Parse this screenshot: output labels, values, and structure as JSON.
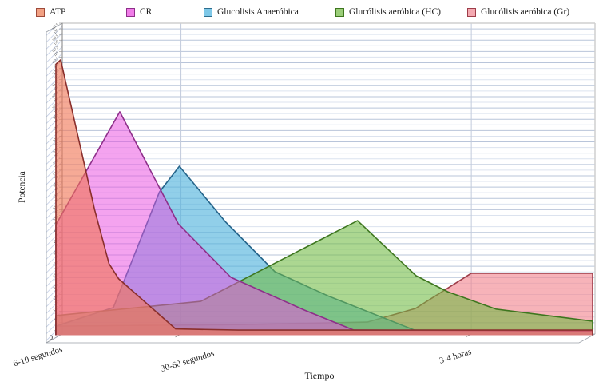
{
  "legend": {
    "items": [
      {
        "label": "ATP",
        "color": "#F2A183",
        "border": "#9E4A3A"
      },
      {
        "label": "CR",
        "color": "#F07CE8",
        "border": "#8E2F8A"
      },
      {
        "label": "Glucolisis Anaeróbica",
        "color": "#7EC8E8",
        "border": "#2E6E8E"
      },
      {
        "label": "Glucólisis aeróbica (HC)",
        "color": "#9ACD78",
        "border": "#3E761F"
      },
      {
        "label": "Glucólisis aeróbica (Gr)",
        "color": "#F4A9B1",
        "border": "#9E3D49"
      }
    ]
  },
  "axes": {
    "x_label": "Tiempo",
    "y_label": "Potencia",
    "y_origin_label": "0",
    "y_ticks": {
      "count": 55,
      "step": 2.5,
      "legible": false
    }
  },
  "chart_data": {
    "type": "area",
    "title": "",
    "xlabel": "Tiempo",
    "ylabel": "Potencia",
    "x_range": [
      0,
      100
    ],
    "ylim": [
      0,
      100
    ],
    "grid": "dense horizontal gridlines, vertical line at each time category",
    "legend_position": "top",
    "categories": [
      {
        "label": "6-10 segundos",
        "t": 0
      },
      {
        "label": "30-60 segundos",
        "t": 23.3
      },
      {
        "label": "3-4 horas",
        "t": 77.4
      }
    ],
    "series": [
      {
        "name": "Glucólisis aeróbica (Gr)",
        "fill": "rgba(242,128,138,0.60)",
        "stroke": "#9E3D49",
        "points": [
          [
            0,
            2.3
          ],
          [
            34,
            2.8
          ],
          [
            58,
            3.6
          ],
          [
            67,
            8
          ],
          [
            77.4,
            19.4
          ],
          [
            100,
            19.4
          ]
        ]
      },
      {
        "name": "Glucolisis Anaeróbica",
        "fill": "rgba(78,178,220,0.62)",
        "stroke": "#25648A",
        "points": [
          [
            0,
            2.3
          ],
          [
            10.7,
            8.3
          ],
          [
            19.3,
            45.7
          ],
          [
            23,
            54
          ],
          [
            31.5,
            36.2
          ],
          [
            40.8,
            19.9
          ],
          [
            50.7,
            12.1
          ],
          [
            66.8,
            1
          ],
          [
            100,
            0.6
          ]
        ]
      },
      {
        "name": "Glucólisis aeróbica (HC)",
        "fill": "rgba(112,186,66,0.58)",
        "stroke": "#3E761F",
        "points": [
          [
            0,
            5.7
          ],
          [
            27,
            10.3
          ],
          [
            56.2,
            36.4
          ],
          [
            67.1,
            18.6
          ],
          [
            73,
            13.4
          ],
          [
            82,
            7.8
          ],
          [
            100,
            3.9
          ]
        ]
      },
      {
        "name": "CR",
        "fill": "rgba(233,79,224,0.52)",
        "stroke": "#8E2F8A",
        "points": [
          [
            0,
            35.1
          ],
          [
            11.9,
            71.6
          ],
          [
            22.8,
            35.4
          ],
          [
            32.6,
            18.1
          ],
          [
            46.3,
            7.5
          ],
          [
            55.5,
            1
          ],
          [
            100,
            0.7
          ]
        ]
      },
      {
        "name": "ATP",
        "fill": "rgba(240,118,86,0.62)",
        "stroke": "#8A2F2C",
        "points": [
          [
            0,
            87
          ],
          [
            0.9,
            88.4
          ],
          [
            7.2,
            40
          ],
          [
            9.9,
            22.5
          ],
          [
            11.7,
            17.6
          ],
          [
            22.3,
            1.4
          ],
          [
            34,
            1
          ],
          [
            100,
            1
          ]
        ]
      }
    ]
  }
}
